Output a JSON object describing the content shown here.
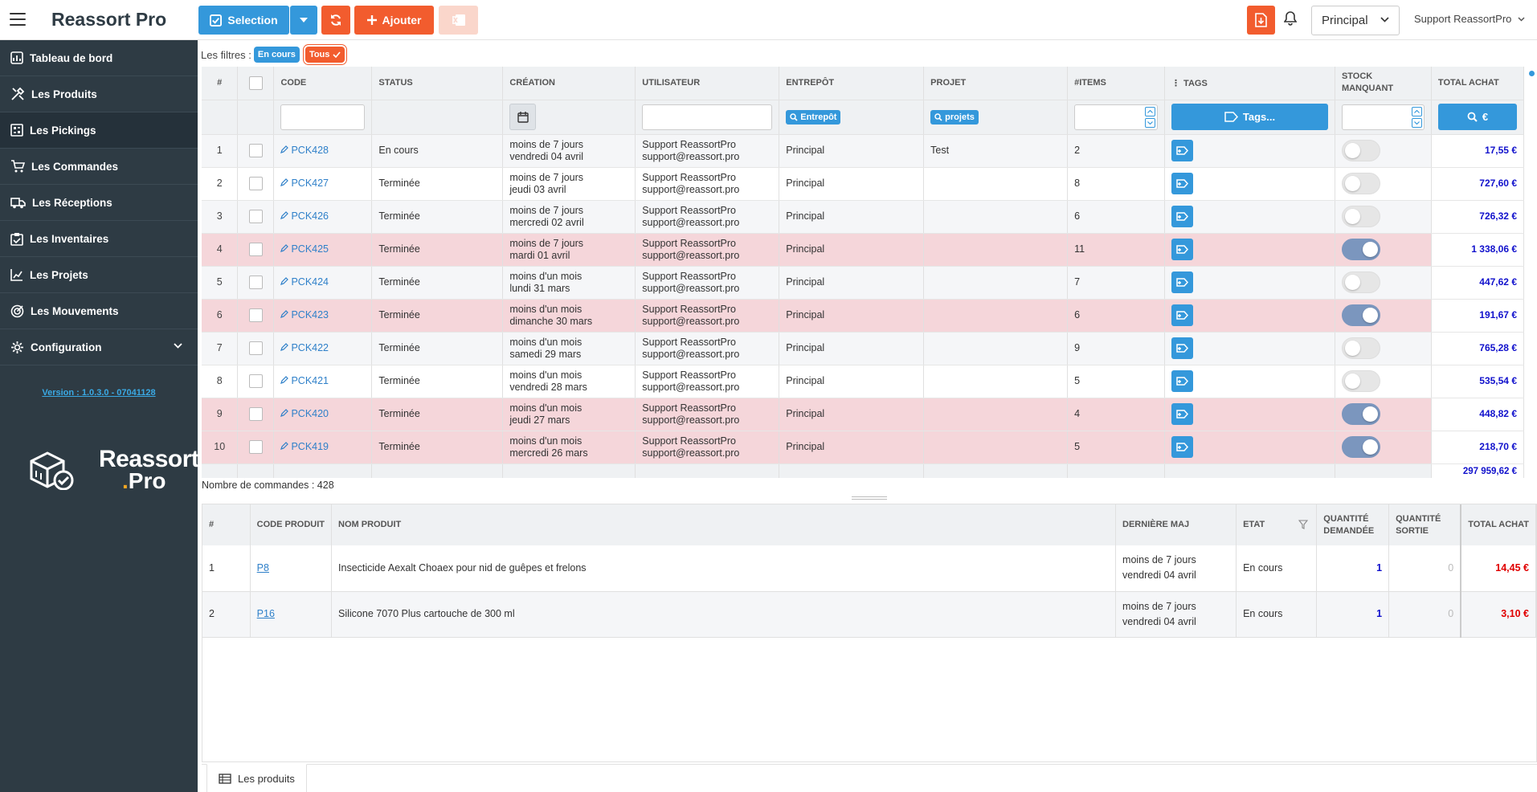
{
  "app": {
    "title": "Reassort Pro"
  },
  "toolbar": {
    "selection_label": "Selection",
    "add_label": "Ajouter",
    "warehouse": "Principal",
    "user": "Support ReassortPro",
    "accent": "#f25c2e",
    "primary": "#3498db"
  },
  "sidebar": {
    "items": [
      {
        "label": "Tableau de bord",
        "icon": "dashboard-icon"
      },
      {
        "label": "Les Produits",
        "icon": "tools-icon"
      },
      {
        "label": "Les Pickings",
        "icon": "picking-icon"
      },
      {
        "label": "Les Commandes",
        "icon": "cart-icon"
      },
      {
        "label": "Les Réceptions",
        "icon": "truck-icon"
      },
      {
        "label": "Les Inventaires",
        "icon": "clipboard-icon"
      },
      {
        "label": "Les Projets",
        "icon": "chart-icon"
      },
      {
        "label": "Les Mouvements",
        "icon": "movement-icon"
      },
      {
        "label": "Configuration",
        "icon": "gear-icon"
      }
    ],
    "version": "Version : 1.0.3.0 - 07041128",
    "logo_line1": "Reassort",
    "logo_dot": ".",
    "logo_line2": "Pro"
  },
  "filters": {
    "label": "Les filtres :",
    "chip_en_cours": "En cours",
    "chip_tous": "Tous"
  },
  "pickings": {
    "headers": {
      "num": "#",
      "code": "CODE",
      "status": "STATUS",
      "creation": "CRÉATION",
      "user": "UTILISATEUR",
      "warehouse": "ENTREPÔT",
      "project": "PROJET",
      "items": "#ITEMS",
      "tags": "TAGS",
      "stock1": "STOCK",
      "stock2": "MANQUANT",
      "total": "TOTAL ACHAT"
    },
    "filter_buttons": {
      "warehouse": "Entrepôt",
      "projects": "projets",
      "tags": "Tags...",
      "euro": "€"
    },
    "rows": [
      {
        "n": "1",
        "code": "PCK428",
        "status": "En cours",
        "c1": "moins de 7 jours",
        "c2": "vendredi 04 avril",
        "u1": "Support ReassortPro",
        "u2": "support@reassort.pro",
        "wh": "Principal",
        "proj": "Test",
        "items": "2",
        "missing": false,
        "total": "17,55 €",
        "red": false
      },
      {
        "n": "2",
        "code": "PCK427",
        "status": "Terminée",
        "c1": "moins de 7 jours",
        "c2": "jeudi 03 avril",
        "u1": "Support ReassortPro",
        "u2": "support@reassort.pro",
        "wh": "Principal",
        "proj": "",
        "items": "8",
        "missing": false,
        "total": "727,60 €",
        "red": false
      },
      {
        "n": "3",
        "code": "PCK426",
        "status": "Terminée",
        "c1": "moins de 7 jours",
        "c2": "mercredi 02 avril",
        "u1": "Support ReassortPro",
        "u2": "support@reassort.pro",
        "wh": "Principal",
        "proj": "",
        "items": "6",
        "missing": false,
        "total": "726,32 €",
        "red": false
      },
      {
        "n": "4",
        "code": "PCK425",
        "status": "Terminée",
        "c1": "moins de 7 jours",
        "c2": "mardi 01 avril",
        "u1": "Support ReassortPro",
        "u2": "support@reassort.pro",
        "wh": "Principal",
        "proj": "",
        "items": "11",
        "missing": true,
        "total": "1 338,06 €",
        "red": true
      },
      {
        "n": "5",
        "code": "PCK424",
        "status": "Terminée",
        "c1": "moins d'un mois",
        "c2": "lundi 31 mars",
        "u1": "Support ReassortPro",
        "u2": "support@reassort.pro",
        "wh": "Principal",
        "proj": "",
        "items": "7",
        "missing": false,
        "total": "447,62 €",
        "red": false
      },
      {
        "n": "6",
        "code": "PCK423",
        "status": "Terminée",
        "c1": "moins d'un mois",
        "c2": "dimanche 30 mars",
        "u1": "Support ReassortPro",
        "u2": "support@reassort.pro",
        "wh": "Principal",
        "proj": "",
        "items": "6",
        "missing": true,
        "total": "191,67 €",
        "red": true
      },
      {
        "n": "7",
        "code": "PCK422",
        "status": "Terminée",
        "c1": "moins d'un mois",
        "c2": "samedi 29 mars",
        "u1": "Support ReassortPro",
        "u2": "support@reassort.pro",
        "wh": "Principal",
        "proj": "",
        "items": "9",
        "missing": false,
        "total": "765,28 €",
        "red": false
      },
      {
        "n": "8",
        "code": "PCK421",
        "status": "Terminée",
        "c1": "moins d'un mois",
        "c2": "vendredi 28 mars",
        "u1": "Support ReassortPro",
        "u2": "support@reassort.pro",
        "wh": "Principal",
        "proj": "",
        "items": "5",
        "missing": false,
        "total": "535,54 €",
        "red": false
      },
      {
        "n": "9",
        "code": "PCK420",
        "status": "Terminée",
        "c1": "moins d'un mois",
        "c2": "jeudi 27 mars",
        "u1": "Support ReassortPro",
        "u2": "support@reassort.pro",
        "wh": "Principal",
        "proj": "",
        "items": "4",
        "missing": true,
        "total": "448,82 €",
        "red": true
      },
      {
        "n": "10",
        "code": "PCK419",
        "status": "Terminée",
        "c1": "moins d'un mois",
        "c2": "mercredi 26 mars",
        "u1": "Support ReassortPro",
        "u2": "support@reassort.pro",
        "wh": "Principal",
        "proj": "",
        "items": "5",
        "missing": true,
        "total": "218,70 €",
        "red": true
      }
    ],
    "grand_total": "297 959,62 €",
    "count_text": "Nombre de commandes : 428"
  },
  "products": {
    "headers": {
      "num": "#",
      "code": "CODE PRODUIT",
      "name": "NOM PRODUIT",
      "updated": "DERNIÈRE MAJ",
      "state": "ETAT",
      "qty_req_1": "QUANTITÉ",
      "qty_req_2": "DEMANDÉE",
      "qty_out_1": "QUANTITÉ",
      "qty_out_2": "SORTIE",
      "total": "TOTAL ACHAT"
    },
    "rows": [
      {
        "n": "1",
        "code": "P8",
        "name": "Insecticide Aexalt Choaex pour nid de guêpes et frelons",
        "u1": "moins de 7 jours",
        "u2": "vendredi 04 avril",
        "state": "En cours",
        "req": "1",
        "out": "0",
        "total": "14,45 €"
      },
      {
        "n": "2",
        "code": "P16",
        "name": "Silicone 7070 Plus cartouche de 300 ml",
        "u1": "moins de 7 jours",
        "u2": "vendredi 04 avril",
        "state": "En cours",
        "req": "1",
        "out": "0",
        "total": "3,10 €"
      }
    ],
    "tab_label": "Les produits"
  }
}
